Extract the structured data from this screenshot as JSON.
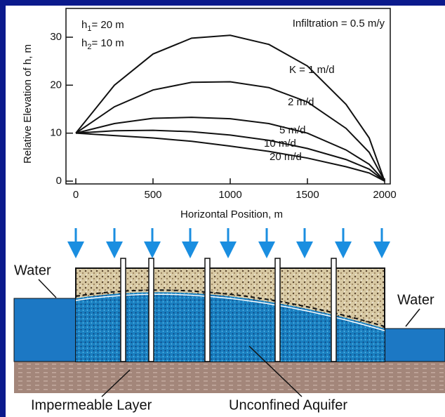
{
  "chart_data": {
    "type": "line",
    "y_label": "Relative Elevation of  h, m",
    "x_label": "Horizontal Position, m",
    "annotation": "Infiltration = 0.5 m/y",
    "h1": {
      "symbol": "h",
      "subscript": "1",
      "text": "= 20 m"
    },
    "h2": {
      "symbol": "h",
      "subscript": "2",
      "text": "= 10 m"
    },
    "x": [
      0,
      250,
      500,
      750,
      1000,
      1250,
      1500,
      1750,
      1900,
      2000
    ],
    "series": [
      {
        "name": "K = 1 m/d",
        "color": "#111111",
        "values": [
          10,
          20,
          26.5,
          29.8,
          30.4,
          28.5,
          24,
          16,
          9,
          0
        ]
      },
      {
        "name": "2 m/d",
        "color": "#111111",
        "values": [
          10,
          15.5,
          19,
          20.6,
          20.7,
          19.5,
          16.5,
          11,
          6,
          0
        ]
      },
      {
        "name": "5 m/d",
        "color": "#111111",
        "values": [
          10,
          12,
          13.1,
          13.3,
          13,
          12,
          10,
          6.5,
          3.5,
          0
        ]
      },
      {
        "name": "10 m/d",
        "color": "#111111",
        "values": [
          10,
          10.5,
          10.6,
          10.3,
          9.6,
          8.5,
          6.8,
          4.5,
          2.5,
          0
        ]
      },
      {
        "name": "20 m/d",
        "color": "#111111",
        "values": [
          10,
          9.5,
          9,
          8.3,
          7.3,
          6.2,
          4.8,
          3,
          1.7,
          0
        ]
      }
    ],
    "xlim": [
      0,
      2000
    ],
    "xticks": [
      0,
      500,
      1000,
      1500,
      2000
    ],
    "ylim": [
      0,
      30
    ],
    "yticks": [
      0,
      10,
      20,
      30
    ]
  },
  "diagram": {
    "labels": {
      "water_left": "Water",
      "water_right": "Water",
      "impermeable": "Impermeable Layer",
      "aquifer": "Unconfined Aquifer"
    }
  }
}
